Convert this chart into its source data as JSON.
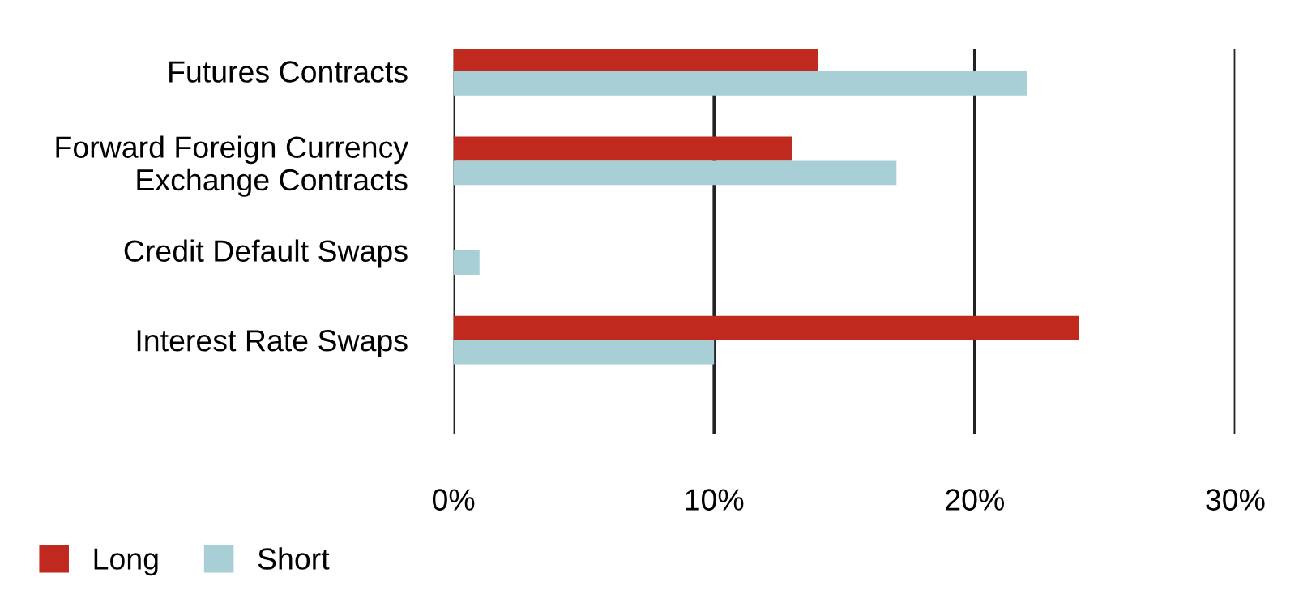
{
  "chart_data": {
    "type": "bar",
    "orientation": "horizontal",
    "categories": [
      "Futures Contracts",
      "Forward Foreign Currency\nExchange Contracts",
      "Credit Default Swaps",
      "Interest Rate Swaps"
    ],
    "series": [
      {
        "name": "Long",
        "color": "#c0291e",
        "values": [
          14,
          13,
          0,
          24
        ]
      },
      {
        "name": "Short",
        "color": "#a7cfd5",
        "values": [
          22,
          17,
          1,
          10
        ]
      }
    ],
    "xlim": [
      0,
      30
    ],
    "xticks": [
      {
        "value": 0,
        "label": "0%"
      },
      {
        "value": 10,
        "label": "10%"
      },
      {
        "value": 20,
        "label": "20%"
      },
      {
        "value": 30,
        "label": "30%"
      }
    ],
    "grid": "x",
    "legend": "bottom left"
  }
}
